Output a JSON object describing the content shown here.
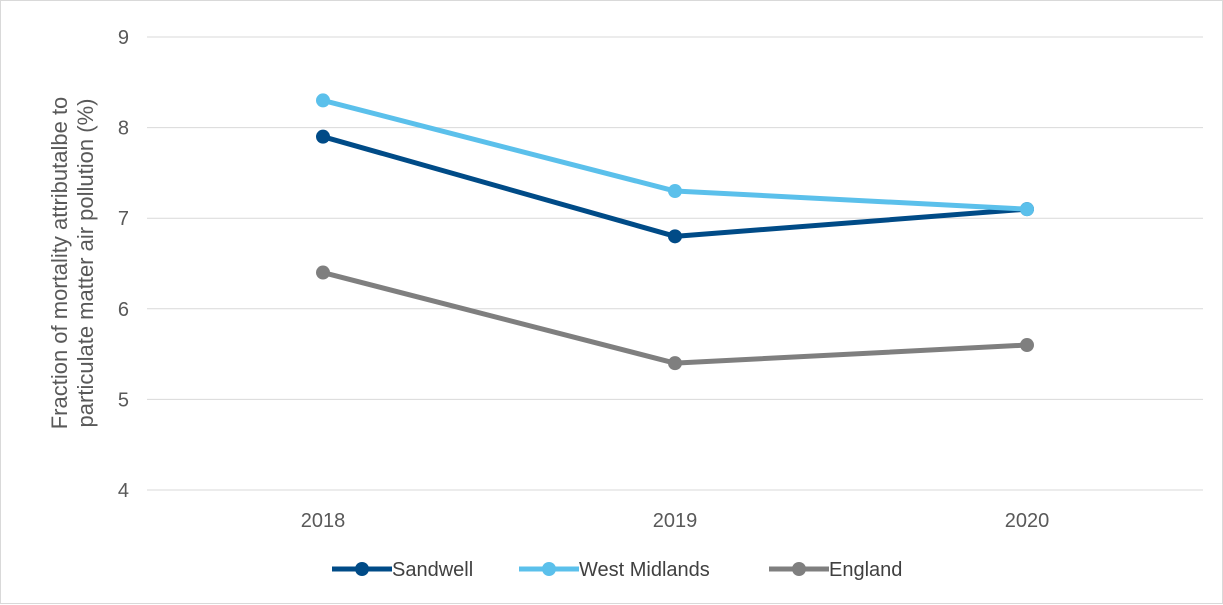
{
  "chart_data": {
    "type": "line",
    "title": "",
    "xlabel": "",
    "ylabel_lines": [
      "Fraction of mortality attributalbe to",
      "particulate matter air pollution (%)"
    ],
    "categories": [
      "2018",
      "2019",
      "2020"
    ],
    "ylim": [
      4,
      9
    ],
    "yticks": [
      "4",
      "5",
      "6",
      "7",
      "8",
      "9"
    ],
    "grid": true,
    "legend_position": "bottom",
    "series": [
      {
        "name": "Sandwell",
        "color": "#004b87",
        "values": [
          7.9,
          6.8,
          7.1
        ]
      },
      {
        "name": "West Midlands",
        "color": "#5bc0eb",
        "values": [
          8.3,
          7.3,
          7.1
        ]
      },
      {
        "name": "England",
        "color": "#7f7f7f",
        "values": [
          6.4,
          5.4,
          5.6
        ]
      }
    ]
  }
}
